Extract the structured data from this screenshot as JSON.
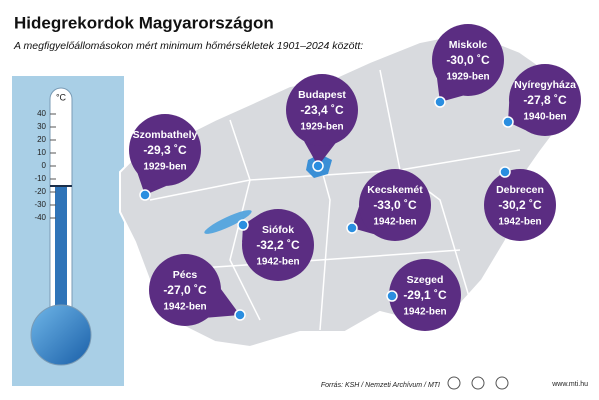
{
  "header": {
    "title": "Hidegrekordok Magyarországon",
    "subtitle": "A megfigyelőállomásokon mért minimum hőmérsékletek 1901–2024 között:"
  },
  "thermometer": {
    "unit": "°C",
    "ticks": [
      "40",
      "30",
      "20",
      "10",
      "0",
      "-10",
      "-20",
      "-30",
      "-40"
    ]
  },
  "cities": [
    {
      "name": "Miskolc",
      "temp": "-30,0 ˚C",
      "year": "1929-ben"
    },
    {
      "name": "Nyíregyháza",
      "temp": "-27,8 ˚C",
      "year": "1940-ben"
    },
    {
      "name": "Budapest",
      "temp": "-23,4 ˚C",
      "year": "1929-ben"
    },
    {
      "name": "Szombathely",
      "temp": "-29,3 ˚C",
      "year": "1929-ben"
    },
    {
      "name": "Kecskemét",
      "temp": "-33,0 ˚C",
      "year": "1942-ben"
    },
    {
      "name": "Debrecen",
      "temp": "-30,2 ˚C",
      "year": "1942-ben"
    },
    {
      "name": "Siófok",
      "temp": "-32,2 ˚C",
      "year": "1942-ben"
    },
    {
      "name": "Pécs",
      "temp": "-27,0 ˚C",
      "year": "1942-ben"
    },
    {
      "name": "Szeged",
      "temp": "-29,1 ˚C",
      "year": "1942-ben"
    }
  ],
  "footer": {
    "source": "Forrás: KSH / Nemzeti Archívum / MTI",
    "url": "www.mti.hu"
  }
}
